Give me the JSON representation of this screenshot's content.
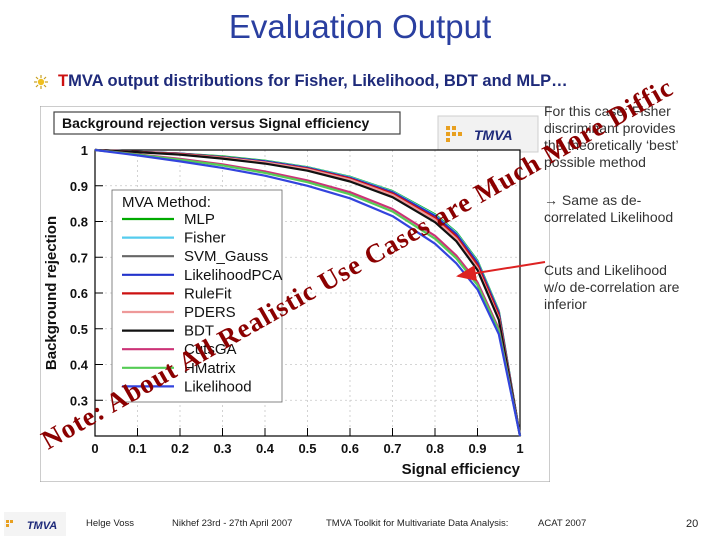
{
  "slide": {
    "title": "Evaluation Output",
    "bullet_prefix": "T",
    "bullet_rest": "MVA output distributions for Fisher, Likelihood, BDT and MLP…",
    "side_text_1": [
      "For this case: Fisher",
      "discriminant provides",
      "the theoretically ‘best’",
      "possible method"
    ],
    "side_text_2": [
      "→ Same as de-",
      "correlated Likelihood"
    ],
    "side_text_3": [
      "Cuts and Likelihood",
      "w/o de-correlation are",
      "inferior"
    ],
    "overlay_note": "Note: About All Realistic Use Cases are Much More Difficult Than This One"
  },
  "footer": {
    "author": "Helge Voss",
    "event": "Nikhef 23rd - 27th April 2007",
    "talk": "TMVA Toolkit for Multivariate Data Analysis:",
    "conference": "ACAT 2007",
    "page": "20"
  },
  "logo_text": "TMVA",
  "chart_data": {
    "type": "line",
    "title": "Background rejection versus Signal efficiency",
    "xlabel": "Signal efficiency",
    "ylabel": "Background rejection",
    "xlim": [
      0,
      1
    ],
    "ylim": [
      0.2,
      1
    ],
    "xticks": [
      "0",
      "0.1",
      "0.2",
      "0.3",
      "0.4",
      "0.5",
      "0.6",
      "0.7",
      "0.8",
      "0.9",
      "1"
    ],
    "yticks": [
      "0.3",
      "0.4",
      "0.5",
      "0.6",
      "0.7",
      "0.8",
      "0.9",
      "1"
    ],
    "legend_title": "MVA Method:",
    "x": [
      0,
      0.1,
      0.2,
      0.3,
      0.4,
      0.5,
      0.6,
      0.7,
      0.8,
      0.85,
      0.9,
      0.95,
      1.0
    ],
    "series": [
      {
        "name": "MLP",
        "color": "#00aa00",
        "values": [
          1.0,
          0.995,
          0.99,
          0.982,
          0.97,
          0.952,
          0.925,
          0.885,
          0.82,
          0.77,
          0.69,
          0.55,
          0.2
        ]
      },
      {
        "name": "Fisher",
        "color": "#55ccee",
        "values": [
          1.0,
          0.995,
          0.99,
          0.981,
          0.969,
          0.951,
          0.924,
          0.884,
          0.818,
          0.768,
          0.688,
          0.548,
          0.2
        ]
      },
      {
        "name": "SVM_Gauss",
        "color": "#666666",
        "values": [
          1.0,
          0.995,
          0.99,
          0.98,
          0.968,
          0.95,
          0.922,
          0.882,
          0.815,
          0.765,
          0.685,
          0.545,
          0.2
        ]
      },
      {
        "name": "LikelihoodPCA",
        "color": "#2233cc",
        "values": [
          1.0,
          0.995,
          0.99,
          0.98,
          0.968,
          0.95,
          0.922,
          0.881,
          0.815,
          0.764,
          0.684,
          0.544,
          0.2
        ]
      },
      {
        "name": "RuleFit",
        "color": "#cc1111",
        "values": [
          1.0,
          0.995,
          0.989,
          0.979,
          0.966,
          0.948,
          0.92,
          0.878,
          0.81,
          0.758,
          0.678,
          0.538,
          0.2
        ]
      },
      {
        "name": "PDERS",
        "color": "#ee9999",
        "values": [
          1.0,
          0.994,
          0.988,
          0.978,
          0.965,
          0.946,
          0.917,
          0.874,
          0.805,
          0.752,
          0.67,
          0.53,
          0.2
        ]
      },
      {
        "name": "BDT",
        "color": "#111111",
        "values": [
          1.0,
          0.994,
          0.987,
          0.976,
          0.962,
          0.942,
          0.912,
          0.868,
          0.798,
          0.745,
          0.664,
          0.525,
          0.2
        ]
      },
      {
        "name": "CutsGA",
        "color": "#cc3377",
        "values": [
          1.0,
          0.988,
          0.975,
          0.96,
          0.94,
          0.915,
          0.882,
          0.835,
          0.76,
          0.705,
          0.63,
          0.5,
          0.2
        ]
      },
      {
        "name": "HMatrix",
        "color": "#55cc55",
        "values": [
          1.0,
          0.987,
          0.973,
          0.957,
          0.936,
          0.91,
          0.876,
          0.828,
          0.752,
          0.697,
          0.622,
          0.495,
          0.2
        ]
      },
      {
        "name": "Likelihood",
        "color": "#3344dd",
        "values": [
          1.0,
          0.985,
          0.968,
          0.95,
          0.928,
          0.9,
          0.865,
          0.815,
          0.738,
          0.683,
          0.61,
          0.485,
          0.2
        ]
      }
    ],
    "colors": {
      "title_color": "#2a3fa0",
      "overlay_color": "#8b0000",
      "arrow_color": "#dd2222"
    }
  }
}
